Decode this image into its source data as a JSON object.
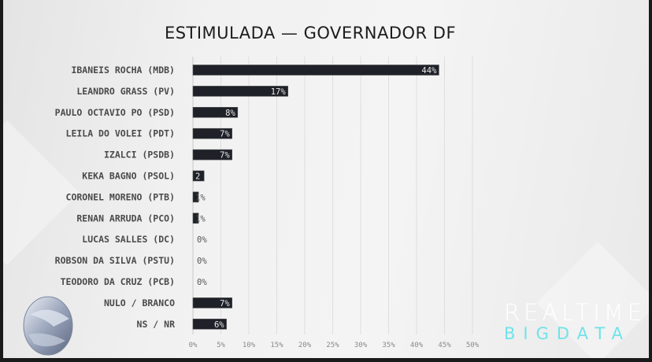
{
  "chart_data": {
    "type": "bar",
    "orientation": "horizontal",
    "title": "ESTIMULADA — GOVERNADOR DF",
    "categories": [
      "IBANEIS ROCHA (MDB)",
      "LEANDRO GRASS (PV)",
      "PAULO OCTAVIO PO (PSD)",
      "LEILA DO VOLEI (PDT)",
      "IZALCI (PSDB)",
      "KEKA BAGNO (PSOL)",
      "CORONEL MORENO (PTB)",
      "RENAN ARRUDA (PCO)",
      "LUCAS SALLES (DC)",
      "ROBSON DA SILVA (PSTU)",
      "TEODORO DA CRUZ (PCB)",
      "NULO / BRANCO",
      "NS / NR"
    ],
    "values": [
      44,
      17,
      8,
      7,
      7,
      2,
      1,
      1,
      0,
      0,
      0,
      7,
      6
    ],
    "data_labels": [
      "44%",
      "17%",
      "8%",
      "7%",
      "7%",
      "2",
      "1%",
      "1%",
      "0%",
      "0%",
      "0%",
      "7%",
      "6%"
    ],
    "xlim": [
      0,
      50
    ],
    "xticks": [
      "0%",
      "5%",
      "10%",
      "15%",
      "20%",
      "25%",
      "30%",
      "35%",
      "40%",
      "45%",
      "50%"
    ],
    "grid": true,
    "bar_color": "#1f2128"
  },
  "branding": {
    "line1": "REALTIME",
    "line2": "BIGDATA",
    "accent": "#6fe3ea"
  }
}
